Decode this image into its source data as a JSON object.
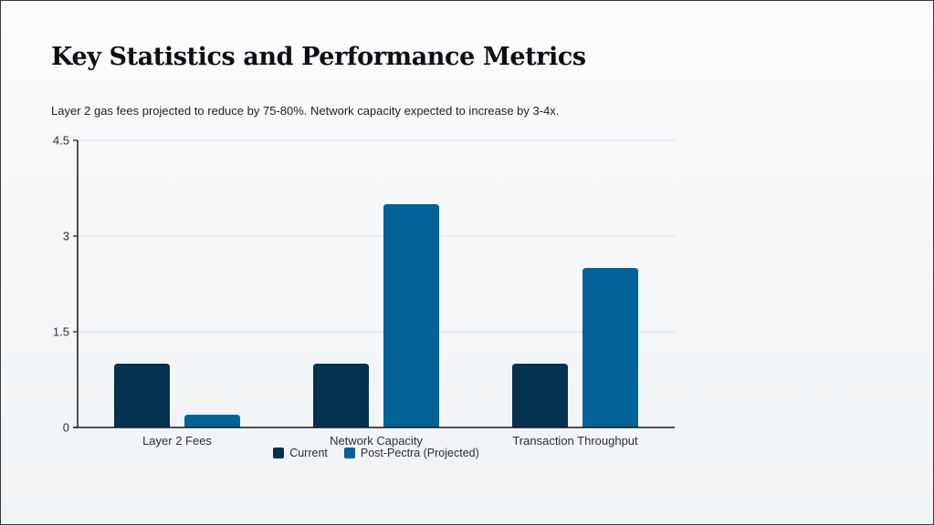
{
  "page": {
    "title": "Key Statistics and Performance Metrics",
    "subtitle": "Layer 2 gas fees projected to reduce by 75-80%. Network capacity expected to increase by 3-4x."
  },
  "chart_data": {
    "type": "bar",
    "categories": [
      "Layer 2 Fees",
      "Network Capacity",
      "Transaction Throughput"
    ],
    "series": [
      {
        "name": "Current",
        "values": [
          1,
          1,
          1
        ],
        "color": "#04324f"
      },
      {
        "name": "Post-Pectra (Projected)",
        "values": [
          0.2,
          3.5,
          2.5
        ],
        "color": "#036397"
      }
    ],
    "ylim": [
      0,
      4.5
    ],
    "yticks": [
      "0",
      "1.5",
      "3",
      "4.5"
    ],
    "ytick_values": [
      0,
      1.5,
      3,
      4.5
    ],
    "grid": true,
    "legend": "bottom-center",
    "xlabel": "",
    "ylabel": ""
  }
}
